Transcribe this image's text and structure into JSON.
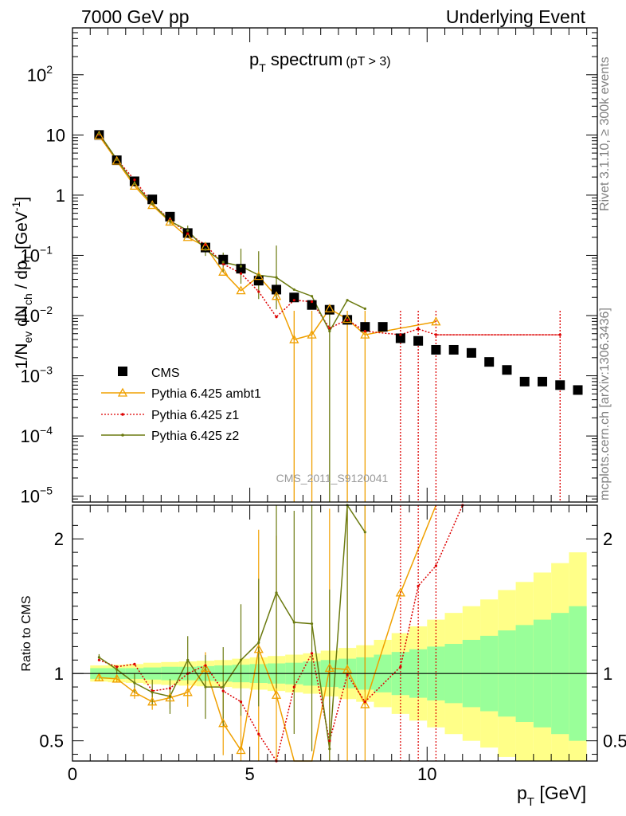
{
  "header": {
    "left": "7000 GeV pp",
    "right": "Underlying Event"
  },
  "side_labels": {
    "rivet": "Rivet 3.1.10, ≥ 300k events",
    "mcplots": "mcplots.cern.ch [arXiv:1306.3436]"
  },
  "watermark": "CMS_2011_S9120041",
  "colors": {
    "cms": "#000000",
    "ambt1": "#f0a000",
    "z1": "#dd0000",
    "z2": "#6b7a10",
    "band_inner": "#99ff99",
    "band_outer": "#ffff88"
  },
  "chart_data": [
    {
      "type": "scatter",
      "title": "p_T spectrum (pT > 3)",
      "title_main": "p",
      "title_sub": "T",
      "title_rest": " spectrum",
      "title_cut": "(pT >  3)",
      "ylabel": "1/N_ev dN_ch / dp_T [GeV^-1]",
      "ylog": true,
      "xlim": [
        0,
        14.8
      ],
      "ylim": [
        8e-06,
        600
      ],
      "yticks": [
        {
          "v": 1e-05,
          "base": "10",
          "exp": "−5"
        },
        {
          "v": 0.0001,
          "base": "10",
          "exp": "−4"
        },
        {
          "v": 0.001,
          "base": "10",
          "exp": "−3"
        },
        {
          "v": 0.01,
          "base": "10",
          "exp": "−2"
        },
        {
          "v": 0.1,
          "base": "10",
          "exp": "−1"
        },
        {
          "v": 1,
          "base": "1",
          "exp": ""
        },
        {
          "v": 10,
          "base": "10",
          "exp": ""
        },
        {
          "v": 100,
          "base": "10",
          "exp": "2"
        }
      ],
      "legend_position": "lower-left",
      "x": [
        0.75,
        1.25,
        1.75,
        2.25,
        2.75,
        3.25,
        3.75,
        4.25,
        4.75,
        5.25,
        5.75,
        6.25,
        6.75,
        7.25,
        7.75,
        8.25,
        8.75,
        9.25,
        9.75,
        10.25,
        10.75,
        11.25,
        11.75,
        12.25,
        12.75,
        13.25,
        13.75,
        14.25
      ],
      "series": [
        {
          "name": "CMS",
          "values": [
            10.0,
            3.8,
            1.7,
            0.85,
            0.44,
            0.235,
            0.135,
            0.085,
            0.06,
            0.038,
            0.027,
            0.02,
            0.015,
            0.0125,
            0.0085,
            0.0065,
            0.0065,
            0.0042,
            0.0038,
            0.0027,
            0.0027,
            0.0024,
            0.0017,
            0.00125,
            0.0008,
            0.0008,
            0.0007,
            0.00058
          ]
        },
        {
          "name": "Pythia 6.425 ambt1",
          "x": [
            0.75,
            1.25,
            1.75,
            2.25,
            2.75,
            3.25,
            3.75,
            4.25,
            4.75,
            5.25,
            5.75,
            6.25,
            6.75,
            7.25,
            7.75,
            8.25,
            10.25
          ],
          "values": [
            9.7,
            3.7,
            1.42,
            0.68,
            0.36,
            0.2,
            0.14,
            0.053,
            0.026,
            0.045,
            0.021,
            0.004,
            0.0048,
            0.013,
            0.0087,
            0.0048,
            0.0079
          ]
        },
        {
          "name": "Pythia 6.425 z1",
          "x": [
            0.75,
            1.25,
            1.75,
            2.25,
            2.75,
            3.25,
            3.75,
            4.25,
            4.75,
            5.25,
            5.75,
            6.25,
            6.75,
            7.25,
            7.75,
            8.25,
            9.25,
            9.75,
            10.25,
            13.75
          ],
          "values": [
            10.2,
            3.9,
            1.8,
            0.72,
            0.39,
            0.23,
            0.15,
            0.072,
            0.05,
            0.025,
            0.0095,
            0.018,
            0.017,
            0.0062,
            0.0085,
            0.0055,
            0.0048,
            0.006,
            0.0048,
            0.0048
          ]
        },
        {
          "name": "Pythia 6.425 z2",
          "x": [
            0.75,
            1.25,
            1.75,
            2.25,
            2.75,
            3.25,
            3.75,
            4.25,
            4.75,
            5.25,
            5.75,
            6.25,
            6.75,
            7.25,
            7.75,
            8.25
          ],
          "values": [
            10.5,
            3.9,
            1.55,
            0.72,
            0.37,
            0.26,
            0.125,
            0.077,
            0.066,
            0.047,
            0.043,
            0.027,
            0.021,
            0.0055,
            0.018,
            0.013
          ]
        }
      ]
    },
    {
      "type": "line",
      "ylabel": "Ratio to CMS",
      "xlabel": "p_T [GeV]",
      "xlabel_main": "p",
      "xlabel_sub": "T",
      "xlabel_unit": " [GeV]",
      "xlim": [
        0,
        14.8
      ],
      "ylim": [
        0.35,
        2.25
      ],
      "xticks": [
        0,
        5,
        10
      ],
      "yticks": [
        0.5,
        1,
        2
      ],
      "bin_edges": [
        0.5,
        1.0,
        1.5,
        2.0,
        2.5,
        3.0,
        3.5,
        4.0,
        4.5,
        5.0,
        5.5,
        6.0,
        6.5,
        7.0,
        7.5,
        8.0,
        8.5,
        9.0,
        9.5,
        10.0,
        10.5,
        11.0,
        11.5,
        12.0,
        12.5,
        13.0,
        13.5,
        14.0,
        14.5
      ],
      "band_inner": [
        0.04,
        0.04,
        0.04,
        0.045,
        0.05,
        0.05,
        0.055,
        0.06,
        0.065,
        0.07,
        0.075,
        0.08,
        0.09,
        0.1,
        0.11,
        0.12,
        0.14,
        0.16,
        0.18,
        0.2,
        0.22,
        0.25,
        0.28,
        0.32,
        0.36,
        0.4,
        0.45,
        0.5
      ],
      "band_outer": [
        0.06,
        0.065,
        0.07,
        0.08,
        0.085,
        0.09,
        0.095,
        0.1,
        0.11,
        0.12,
        0.13,
        0.14,
        0.15,
        0.17,
        0.19,
        0.21,
        0.25,
        0.3,
        0.35,
        0.4,
        0.45,
        0.5,
        0.55,
        0.62,
        0.68,
        0.75,
        0.82,
        0.9
      ],
      "series": [
        {
          "name": "Pythia 6.425 ambt1",
          "x": [
            0.75,
            1.25,
            1.75,
            2.25,
            2.75,
            3.25,
            3.75,
            4.25,
            4.75,
            5.25,
            5.75,
            6.25,
            6.75,
            7.25,
            7.75,
            8.25,
            9.25,
            10.25
          ],
          "values": [
            0.97,
            0.96,
            0.86,
            0.79,
            0.82,
            0.86,
            1.04,
            0.63,
            0.43,
            1.18,
            0.84,
            0.2,
            0.3,
            1.04,
            1.03,
            0.77,
            1.6,
            2.4
          ]
        },
        {
          "name": "Pythia 6.425 z1",
          "x": [
            0.75,
            1.25,
            1.75,
            2.25,
            2.75,
            3.25,
            3.75,
            4.25,
            4.75,
            5.25,
            5.75,
            6.25,
            6.75,
            7.25,
            7.75,
            8.25,
            9.25,
            9.75,
            10.25,
            11.0
          ],
          "values": [
            1.1,
            1.05,
            1.07,
            0.87,
            0.89,
            1.0,
            1.06,
            0.87,
            0.79,
            0.55,
            0.35,
            0.9,
            1.15,
            0.5,
            0.99,
            0.79,
            1.05,
            1.65,
            1.8,
            2.25
          ]
        },
        {
          "name": "Pythia 6.425 z2",
          "x": [
            0.75,
            1.25,
            1.75,
            2.25,
            2.75,
            3.25,
            3.75,
            4.25,
            4.75,
            5.25,
            5.75,
            6.25,
            6.75,
            7.25,
            7.75,
            8.25
          ],
          "values": [
            1.12,
            1.03,
            0.93,
            0.86,
            0.83,
            1.1,
            0.9,
            0.9,
            1.1,
            1.23,
            1.6,
            1.38,
            1.37,
            0.44,
            2.25,
            2.05
          ]
        }
      ]
    }
  ]
}
